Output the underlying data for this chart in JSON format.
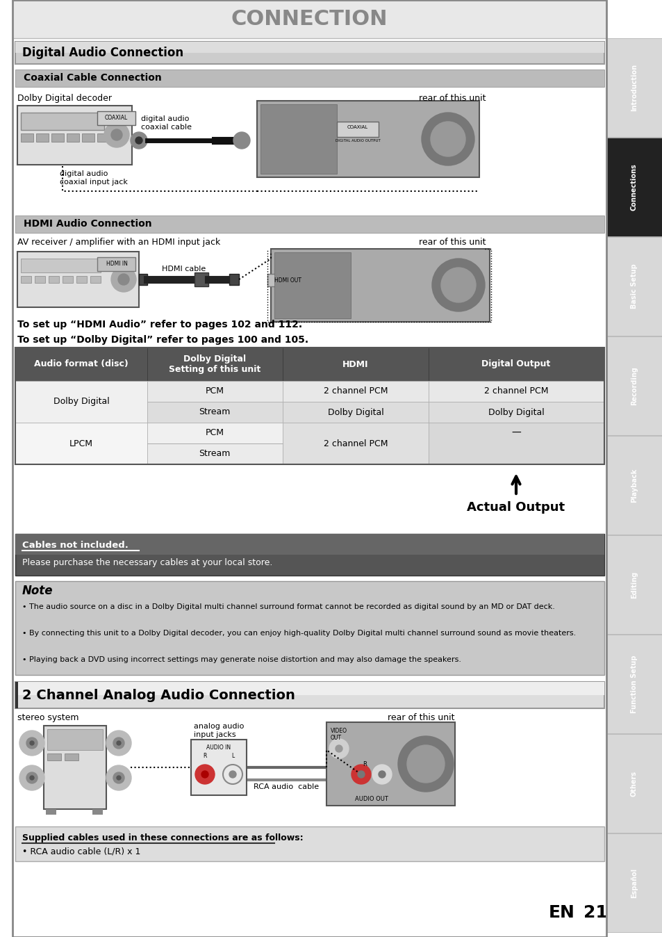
{
  "title": "CONNECTION",
  "page_bg": "#ffffff",
  "section1_title": "Digital Audio Connection",
  "subsection1_title": "Coaxial Cable Connection",
  "coaxial_label1": "Dolby Digital decoder",
  "coaxial_label2": "digital audio\ncoaxial cable",
  "coaxial_label3": "rear of this unit",
  "coaxial_label4": "digital audio\ncoaxial input jack",
  "subsection2_title": "HDMI Audio Connection",
  "hdmi_label1": "AV receiver / amplifier with an HDMI input jack",
  "hdmi_label2": "HDMI cable",
  "hdmi_label3": "rear of this unit",
  "hdmi_note1": "To set up “HDMI Audio” refer to pages 102 and 112.",
  "hdmi_note2": "To set up “Dolby Digital” refer to pages 100 and 105.",
  "table_headers": [
    "Audio format (disc)",
    "Dolby Digital\nSetting of this unit",
    "HDMI",
    "Digital Output"
  ],
  "table_row1_label": "Dolby Digital",
  "table_row1_data": [
    [
      "PCM",
      "2 channel PCM",
      "2 channel PCM"
    ],
    [
      "Stream",
      "Dolby Digital",
      "Dolby Digital"
    ]
  ],
  "table_row2_label": "LPCM",
  "table_row2_data": [
    [
      "PCM",
      "2 channel PCM",
      ""
    ],
    [
      "Stream",
      "",
      ""
    ]
  ],
  "actual_output_label": "Actual Output",
  "cables_title": "Cables not included.",
  "cables_text": "Please purchase the necessary cables at your local store.",
  "note_title": "Note",
  "note_bullets": [
    "The audio source on a disc in a Dolby Digital multi channel surround format cannot be recorded as digital sound by an MD or DAT deck.",
    "By connecting this unit to a Dolby Digital decoder, you can enjoy high-quality Dolby Digital multi channel surround sound as movie theaters.",
    "Playing back a DVD using incorrect settings may generate noise distortion and may also damage the speakers."
  ],
  "section2_title": "2 Channel Analog Audio Connection",
  "analog_label1": "stereo system",
  "analog_label2": "analog audio\ninput jacks",
  "analog_label3": "rear of this unit",
  "analog_label4": "RCA audio  cable",
  "supplied_title": "Supplied cables used in these connections are as follows:",
  "supplied_text": "• RCA audio cable (L/R) x 1",
  "sidebar_tabs": [
    "Introduction",
    "Connections",
    "Basic Setup",
    "Recording",
    "Playback",
    "Editing",
    "Function Setup",
    "Others",
    "Español"
  ],
  "sidebar_active": "Connections",
  "page_number": "21",
  "page_en": "EN"
}
